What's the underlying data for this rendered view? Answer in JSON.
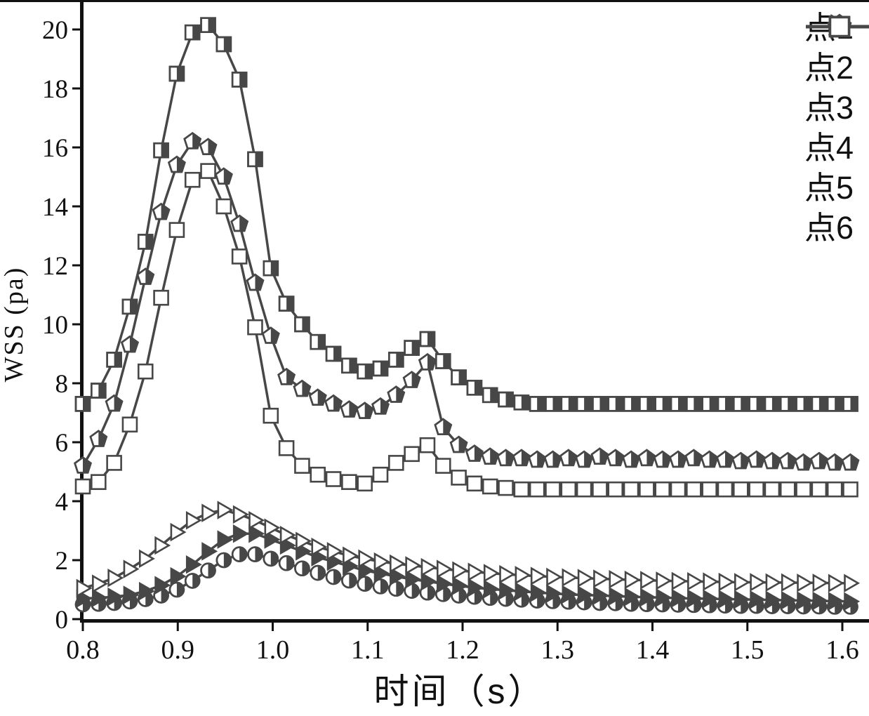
{
  "chart_data": {
    "type": "line",
    "title": "",
    "xlabel": "时间（s）",
    "ylabel": "WSS (pa)",
    "xlim": [
      0.8,
      1.6
    ],
    "ylim": [
      0,
      20
    ],
    "grid": false,
    "legend_position": "top-right",
    "colors": {
      "line": "#474747",
      "text": "#111111",
      "background": "#ffffff"
    },
    "x_ticks": [
      0.8,
      0.9,
      1.0,
      1.1,
      1.2,
      1.3,
      1.4,
      1.5,
      1.6
    ],
    "x_tick_labels": [
      "0.8",
      "0.9",
      "1.0",
      "1.1",
      "1.2",
      "1.3",
      "1.4",
      "1.5",
      "1.6"
    ],
    "y_ticks": [
      0,
      2,
      4,
      6,
      8,
      10,
      12,
      14,
      16,
      18,
      20
    ],
    "y_tick_labels": [
      "0",
      "2",
      "4",
      "6",
      "8",
      "10",
      "12",
      "14",
      "16",
      "18",
      "20"
    ],
    "x": [
      0.8,
      0.8165,
      0.833,
      0.8495,
      0.866,
      0.8825,
      0.899,
      0.9155,
      0.932,
      0.9485,
      0.965,
      0.9815,
      0.998,
      1.0145,
      1.031,
      1.0475,
      1.064,
      1.0805,
      1.097,
      1.1135,
      1.13,
      1.1465,
      1.163,
      1.1795,
      1.196,
      1.2125,
      1.229,
      1.2455,
      1.262,
      1.2785,
      1.295,
      1.3115,
      1.328,
      1.3445,
      1.361,
      1.3775,
      1.394,
      1.4105,
      1.427,
      1.4435,
      1.46,
      1.4765,
      1.493,
      1.5095,
      1.526,
      1.5425,
      1.559,
      1.5755,
      1.592,
      1.6085
    ],
    "series": [
      {
        "name": "点1",
        "marker": "half-filled-square",
        "values": [
          7.3,
          7.75,
          8.8,
          10.6,
          12.8,
          15.9,
          18.5,
          19.9,
          20.15,
          19.5,
          18.3,
          15.6,
          11.9,
          10.7,
          10.0,
          9.4,
          9.0,
          8.6,
          8.4,
          8.5,
          8.8,
          9.2,
          9.5,
          8.75,
          8.2,
          7.85,
          7.6,
          7.45,
          7.35,
          7.3,
          7.3,
          7.3,
          7.3,
          7.3,
          7.3,
          7.3,
          7.3,
          7.3,
          7.3,
          7.3,
          7.3,
          7.3,
          7.3,
          7.3,
          7.3,
          7.3,
          7.3,
          7.3,
          7.3,
          7.3
        ]
      },
      {
        "name": "点2",
        "marker": "half-filled-circle",
        "values": [
          0.5,
          0.52,
          0.55,
          0.6,
          0.68,
          0.8,
          1.0,
          1.3,
          1.65,
          2.0,
          2.2,
          2.2,
          2.05,
          1.9,
          1.72,
          1.57,
          1.43,
          1.31,
          1.2,
          1.11,
          1.03,
          0.96,
          0.9,
          0.85,
          0.8,
          0.76,
          0.72,
          0.69,
          0.66,
          0.63,
          0.61,
          0.59,
          0.57,
          0.55,
          0.54,
          0.52,
          0.51,
          0.5,
          0.49,
          0.48,
          0.47,
          0.46,
          0.45,
          0.45,
          0.44,
          0.44,
          0.43,
          0.43,
          0.42,
          0.42
        ]
      },
      {
        "name": "点3",
        "marker": "filled-right-triangle",
        "values": [
          0.7,
          0.72,
          0.76,
          0.82,
          0.95,
          1.15,
          1.45,
          1.85,
          2.3,
          2.7,
          2.9,
          2.9,
          2.7,
          2.5,
          2.3,
          2.1,
          1.95,
          1.8,
          1.65,
          1.55,
          1.45,
          1.35,
          1.28,
          1.2,
          1.13,
          1.07,
          1.02,
          0.98,
          0.94,
          0.9,
          0.87,
          0.84,
          0.82,
          0.8,
          0.78,
          0.76,
          0.74,
          0.73,
          0.71,
          0.7,
          0.69,
          0.68,
          0.67,
          0.66,
          0.65,
          0.64,
          0.63,
          0.62,
          0.61,
          0.6
        ]
      },
      {
        "name": "点4",
        "marker": "open-right-triangle",
        "values": [
          1.05,
          1.2,
          1.4,
          1.7,
          2.05,
          2.5,
          2.95,
          3.35,
          3.6,
          3.7,
          3.55,
          3.35,
          3.1,
          2.85,
          2.65,
          2.45,
          2.3,
          2.15,
          2.05,
          1.95,
          1.88,
          1.82,
          1.76,
          1.7,
          1.65,
          1.6,
          1.56,
          1.52,
          1.49,
          1.46,
          1.43,
          1.41,
          1.39,
          1.37,
          1.35,
          1.33,
          1.32,
          1.3,
          1.29,
          1.28,
          1.27,
          1.26,
          1.25,
          1.25,
          1.24,
          1.24,
          1.23,
          1.23,
          1.22,
          1.22
        ]
      },
      {
        "name": "点5",
        "marker": "half-filled-pentagon",
        "values": [
          5.2,
          6.1,
          7.3,
          9.3,
          11.6,
          13.8,
          15.4,
          16.2,
          16.0,
          15.0,
          13.4,
          11.4,
          9.6,
          8.2,
          7.8,
          7.5,
          7.3,
          7.1,
          7.05,
          7.2,
          7.6,
          8.1,
          8.7,
          6.5,
          5.9,
          5.6,
          5.5,
          5.45,
          5.45,
          5.4,
          5.4,
          5.45,
          5.4,
          5.5,
          5.45,
          5.4,
          5.45,
          5.4,
          5.4,
          5.45,
          5.4,
          5.4,
          5.35,
          5.4,
          5.35,
          5.35,
          5.3,
          5.35,
          5.3,
          5.3
        ]
      },
      {
        "name": "点6",
        "marker": "open-square",
        "values": [
          4.5,
          4.65,
          5.3,
          6.6,
          8.4,
          10.9,
          13.2,
          14.9,
          15.2,
          14.0,
          12.3,
          9.9,
          6.9,
          5.8,
          5.2,
          4.9,
          4.75,
          4.65,
          4.6,
          4.9,
          5.3,
          5.6,
          5.9,
          5.2,
          4.8,
          4.6,
          4.5,
          4.45,
          4.4,
          4.4,
          4.4,
          4.4,
          4.4,
          4.4,
          4.4,
          4.4,
          4.4,
          4.4,
          4.4,
          4.4,
          4.4,
          4.4,
          4.4,
          4.4,
          4.4,
          4.4,
          4.4,
          4.4,
          4.4,
          4.4
        ]
      }
    ]
  }
}
